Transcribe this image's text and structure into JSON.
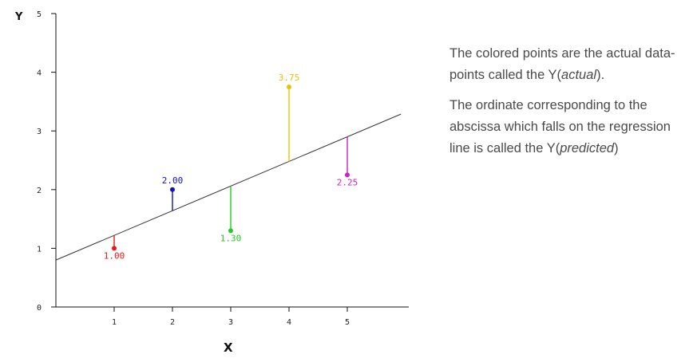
{
  "chart_data": {
    "type": "scatter",
    "xlabel": "X",
    "ylabel": "Y",
    "xlim": [
      0,
      6
    ],
    "ylim": [
      0,
      5
    ],
    "xticks": [
      1,
      2,
      3,
      4,
      5
    ],
    "yticks": [
      0,
      1,
      2,
      3,
      4,
      5
    ],
    "grid": false,
    "regression_line": {
      "intercept": 0.8,
      "slope": 0.42
    },
    "points": [
      {
        "x": 1,
        "y": 1.0,
        "label": "1.00",
        "color": "#e41a1c"
      },
      {
        "x": 2,
        "y": 2.0,
        "label": "2.00",
        "color": "#1010c8"
      },
      {
        "x": 3,
        "y": 1.3,
        "label": "1.30",
        "color": "#22cc22"
      },
      {
        "x": 4,
        "y": 3.75,
        "label": "3.75",
        "color": "#e8c400"
      },
      {
        "x": 5,
        "y": 2.25,
        "label": "2.25",
        "color": "#d020c8"
      }
    ]
  },
  "explanation": {
    "p1_text": "The colored points are the actual data-points called the Y(",
    "p1_em": "actual",
    "p1_end": ").",
    "p2_text": "The ordinate corresponding to the abscissa which falls on the regression line is called the Y(",
    "p2_em": "predicted",
    "p2_end": ")"
  }
}
